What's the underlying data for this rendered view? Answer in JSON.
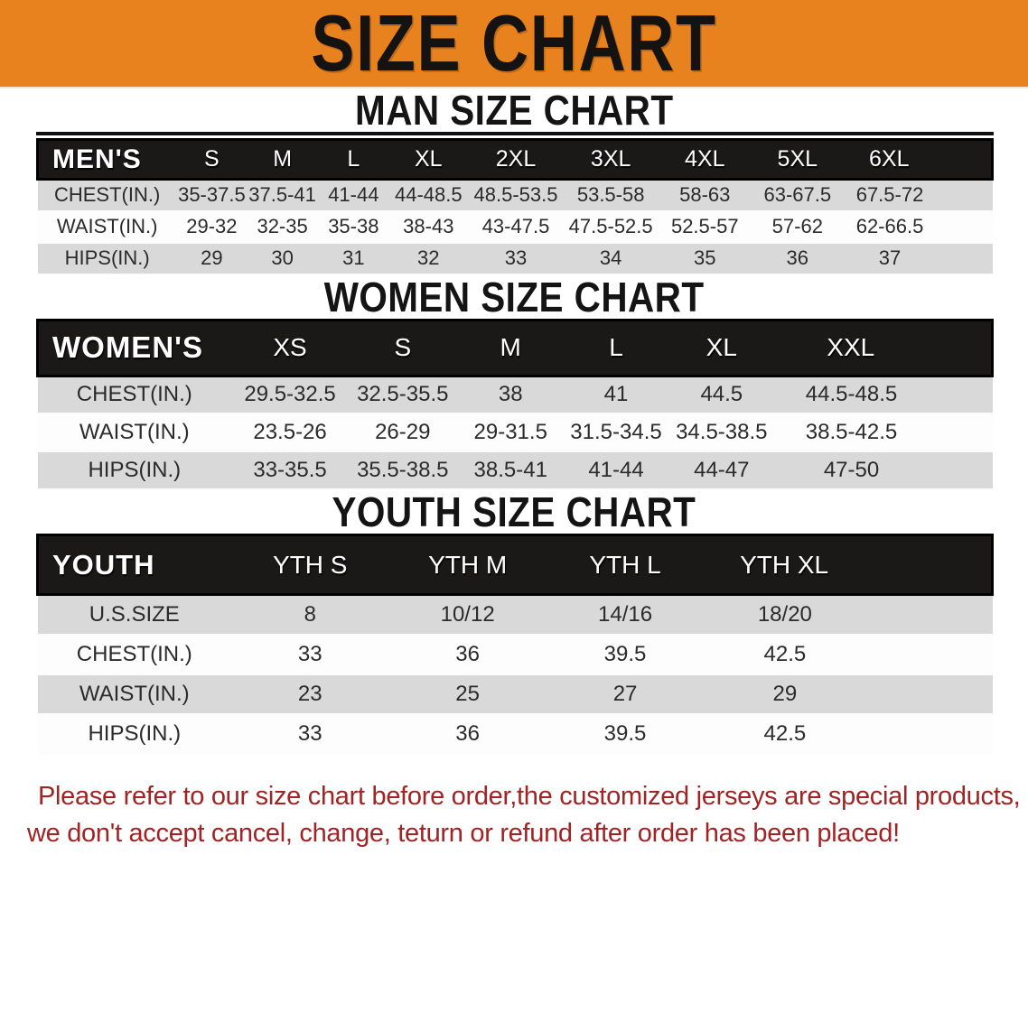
{
  "banner": {
    "title": "SIZE CHART",
    "bg_color": "#E8821F",
    "text_color": "#151311"
  },
  "sections": [
    {
      "id": "men",
      "heading": "MAN SIZE CHART",
      "header": [
        "MEN'S",
        "S",
        "M",
        "L",
        "XL",
        "2XL",
        "3XL",
        "4XL",
        "5XL",
        "6XL"
      ],
      "rows": [
        [
          "CHEST(IN.)",
          "35-37.5",
          "37.5-41",
          "41-44",
          "44-48.5",
          "48.5-53.5",
          "53.5-58",
          "58-63",
          "63-67.5",
          "67.5-72"
        ],
        [
          "WAIST(IN.)",
          "29-32",
          "32-35",
          "35-38",
          "38-43",
          "43-47.5",
          "47.5-52.5",
          "52.5-57",
          "57-62",
          "62-66.5"
        ],
        [
          "HIPS(IN.)",
          "29",
          "30",
          "31",
          "32",
          "33",
          "34",
          "35",
          "36",
          "37"
        ]
      ]
    },
    {
      "id": "women",
      "heading": "WOMEN SIZE CHART",
      "header": [
        "WOMEN'S",
        "XS",
        "S",
        "M",
        "L",
        "XL",
        "XXL"
      ],
      "rows": [
        [
          "CHEST(IN.)",
          "29.5-32.5",
          "32.5-35.5",
          "38",
          "41",
          "44.5",
          "44.5-48.5"
        ],
        [
          "WAIST(IN.)",
          "23.5-26",
          "26-29",
          "29-31.5",
          "31.5-34.5",
          "34.5-38.5",
          "38.5-42.5"
        ],
        [
          "HIPS(IN.)",
          "33-35.5",
          "35.5-38.5",
          "38.5-41",
          "41-44",
          "44-47",
          "47-50"
        ]
      ]
    },
    {
      "id": "youth",
      "heading": "YOUTH SIZE CHART",
      "header": [
        "YOUTH",
        "YTH S",
        "YTH M",
        "YTH L",
        "YTH XL"
      ],
      "rows": [
        [
          "U.S.SIZE",
          "8",
          "10/12",
          "14/16",
          "18/20"
        ],
        [
          "CHEST(IN.)",
          "33",
          "36",
          "39.5",
          "42.5"
        ],
        [
          "WAIST(IN.)",
          "23",
          "25",
          "27",
          "29"
        ],
        [
          "HIPS(IN.)",
          "33",
          "36",
          "39.5",
          "42.5"
        ]
      ]
    }
  ],
  "footer": {
    "line1": "Please refer to our size chart before order,the customized jerseys are special products,",
    "line2": "we don't accept cancel, change, teturn or refund after order has been placed!",
    "text_color": "#A12323"
  },
  "colors": {
    "table_header_bg": "#1B1818",
    "row_shade": "#D9D9D9",
    "row_light": "#FDFDFD"
  }
}
